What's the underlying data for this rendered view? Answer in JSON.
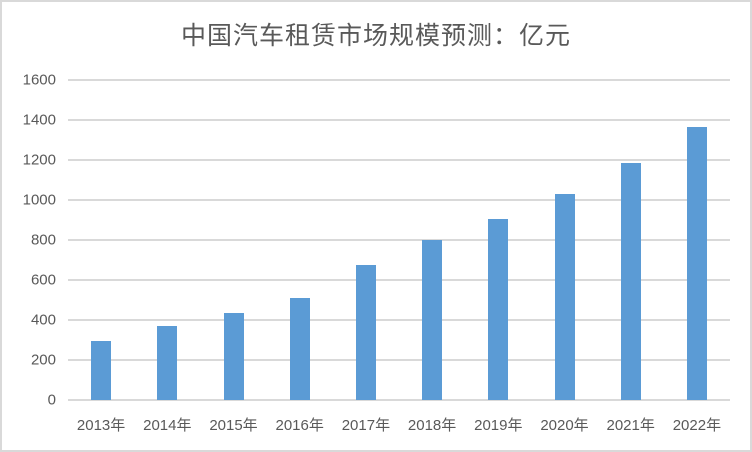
{
  "chart_data": {
    "type": "bar",
    "title": "中国汽车租赁市场规模预测：亿元",
    "xlabel": "",
    "ylabel": "",
    "categories": [
      "2013年",
      "2014年",
      "2015年",
      "2016年",
      "2017年",
      "2018年",
      "2019年",
      "2020年",
      "2021年",
      "2022年"
    ],
    "values": [
      296,
      370,
      437,
      510,
      675,
      800,
      905,
      1030,
      1185,
      1365
    ],
    "ylim": [
      0,
      1600
    ],
    "yticks": [
      0,
      200,
      400,
      600,
      800,
      1000,
      1200,
      1400,
      1600
    ],
    "grid": true,
    "legend": null,
    "bar_color": "#5b9bd5"
  }
}
